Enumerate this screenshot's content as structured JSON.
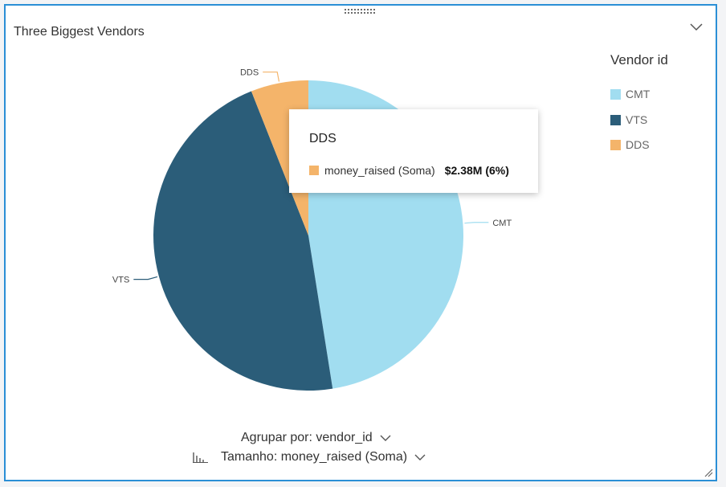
{
  "panel": {
    "title": "Three Biggest Vendors"
  },
  "legend": {
    "title": "Vendor id",
    "items": [
      {
        "label": "CMT",
        "color": "#a1ddf0"
      },
      {
        "label": "VTS",
        "color": "#2b5d79"
      },
      {
        "label": "DDS",
        "color": "#f4b46a"
      }
    ]
  },
  "tooltip": {
    "title": "DDS",
    "measure": "money_raised (Soma)",
    "value": "$2.38M (6%)",
    "color": "#f4b46a"
  },
  "controls": {
    "group_by": "Agrupar por: vendor_id",
    "size_by": "Tamanho: money_raised (Soma)"
  },
  "icons": [
    "drag-handle-icon",
    "chevron-down-icon",
    "bar-chart-icon",
    "resize-icon"
  ],
  "chart_data": {
    "type": "pie",
    "categories": [
      "CMT",
      "VTS",
      "DDS"
    ],
    "values": [
      47.5,
      46.5,
      6
    ],
    "colors": [
      "#a1ddf0",
      "#2b5d79",
      "#f4b46a"
    ],
    "title": "Three Biggest Vendors",
    "legend_title": "Vendor id",
    "legend_position": "right"
  }
}
